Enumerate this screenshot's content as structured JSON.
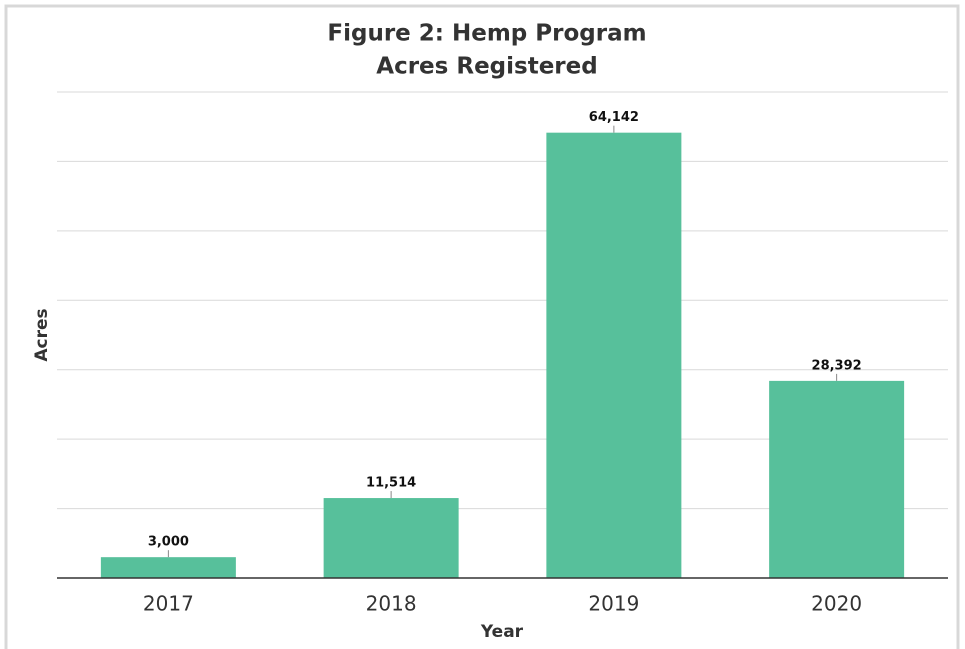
{
  "chart_data": {
    "type": "bar",
    "title": [
      "Figure 2:  Hemp Program",
      "Acres Registered"
    ],
    "x_label": "Year",
    "y_label": "Acres",
    "categories": [
      "2017",
      "2018",
      "2019",
      "2020"
    ],
    "values": [
      3000,
      11514,
      64142,
      28392
    ],
    "value_labels": [
      "3,000",
      "11,514",
      "64,142",
      "28,392"
    ],
    "color": "#57c09b",
    "ylim": [
      0,
      70000
    ],
    "yticks": [
      0,
      10000,
      20000,
      30000,
      40000,
      50000,
      60000,
      70000
    ],
    "grid": true
  }
}
